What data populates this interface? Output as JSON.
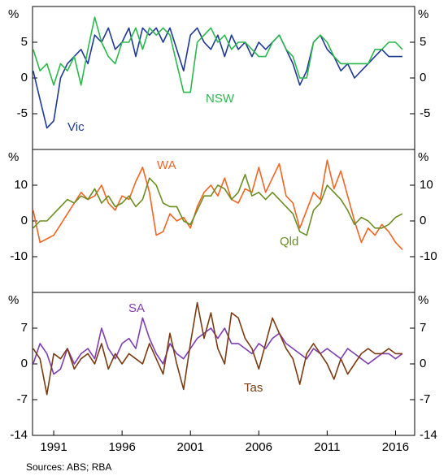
{
  "chart_data": [
    {
      "type": "line",
      "unit": "%",
      "x": [
        1989.5,
        1990,
        1990.5,
        1991,
        1991.5,
        1992,
        1992.5,
        1993,
        1993.5,
        1994,
        1994.5,
        1995,
        1995.5,
        1996,
        1996.5,
        1997,
        1997.5,
        1998,
        1998.5,
        1999,
        1999.5,
        2000,
        2000.5,
        2001,
        2001.5,
        2002,
        2002.5,
        2003,
        2003.5,
        2004,
        2004.5,
        2005,
        2005.5,
        2006,
        2006.5,
        2007,
        2007.5,
        2008,
        2008.5,
        2009,
        2009.5,
        2010,
        2010.5,
        2011,
        2011.5,
        2012,
        2012.5,
        2013,
        2013.5,
        2014,
        2014.5,
        2015,
        2015.5,
        2016,
        2016.5
      ],
      "xlim": [
        1989.45,
        2017.4
      ],
      "ylim": [
        -10,
        10
      ],
      "yticks": [
        -5,
        0,
        5
      ],
      "series": [
        {
          "name": "Vic",
          "color": "#1f3a93",
          "values": [
            1,
            -3,
            -7,
            -6,
            0,
            2,
            3,
            4,
            2,
            6,
            5,
            7,
            4,
            5,
            7,
            3,
            7,
            6,
            7,
            5,
            7,
            4,
            1,
            6,
            7,
            5,
            4,
            6,
            3,
            6,
            4,
            5,
            3,
            5,
            4,
            5,
            6,
            4,
            2,
            -1,
            1,
            5,
            6,
            4,
            3,
            1,
            2,
            0,
            1,
            2,
            3,
            4,
            3,
            3,
            3
          ]
        },
        {
          "name": "NSW",
          "color": "#2db84d",
          "values": [
            4,
            1,
            2,
            -1,
            2,
            1,
            3,
            -1,
            4,
            8.5,
            5,
            3,
            2,
            5,
            5,
            7,
            4,
            7,
            6,
            7,
            6,
            2,
            -2,
            -2,
            5,
            6,
            7,
            5,
            6,
            4,
            5,
            5,
            4,
            3,
            3,
            5,
            6,
            4,
            3,
            0,
            0,
            5,
            6,
            5,
            3,
            2,
            2,
            2,
            2,
            2,
            4,
            4,
            5,
            5,
            4
          ]
        }
      ]
    },
    {
      "type": "line",
      "unit": "%",
      "x": [
        1989.5,
        1990,
        1990.5,
        1991,
        1991.5,
        1992,
        1992.5,
        1993,
        1993.5,
        1994,
        1994.5,
        1995,
        1995.5,
        1996,
        1996.5,
        1997,
        1997.5,
        1998,
        1998.5,
        1999,
        1999.5,
        2000,
        2000.5,
        2001,
        2001.5,
        2002,
        2002.5,
        2003,
        2003.5,
        2004,
        2004.5,
        2005,
        2005.5,
        2006,
        2006.5,
        2007,
        2007.5,
        2008,
        2008.5,
        2009,
        2009.5,
        2010,
        2010.5,
        2011,
        2011.5,
        2012,
        2012.5,
        2013,
        2013.5,
        2014,
        2014.5,
        2015,
        2015.5,
        2016,
        2016.5
      ],
      "xlim": [
        1989.45,
        2017.4
      ],
      "ylim": [
        -20,
        20
      ],
      "yticks": [
        -10,
        0,
        10
      ],
      "series": [
        {
          "name": "WA",
          "color": "#f26522",
          "values": [
            3,
            -6,
            -5,
            -4,
            -1,
            2,
            5,
            8,
            6,
            7,
            10,
            5,
            3,
            7,
            6,
            11,
            15,
            8,
            -4,
            -3,
            2,
            0,
            1,
            -2,
            4,
            8,
            10,
            7,
            12,
            6,
            5,
            9,
            8,
            15,
            8,
            12,
            16,
            7,
            5,
            -2,
            3,
            8,
            6,
            17,
            9,
            14,
            7,
            0,
            -6,
            -2,
            -4,
            -1,
            -3,
            -6,
            -8
          ]
        },
        {
          "name": "Qld",
          "color": "#6b8e23",
          "values": [
            -2,
            0,
            0,
            2,
            4,
            6,
            5,
            7,
            6,
            9,
            5,
            7,
            4,
            5,
            7,
            4,
            6,
            12,
            10,
            5,
            4,
            4,
            0,
            -1,
            3,
            7,
            7,
            10,
            9,
            6,
            8,
            13,
            7,
            8,
            6,
            8,
            6,
            4,
            2,
            -3,
            -4,
            3,
            5,
            10,
            8,
            6,
            3,
            -1,
            1,
            0,
            -2,
            -2,
            -1,
            1,
            2
          ]
        }
      ]
    },
    {
      "type": "line",
      "unit": "%",
      "x": [
        1989.5,
        1990,
        1990.5,
        1991,
        1991.5,
        1992,
        1992.5,
        1993,
        1993.5,
        1994,
        1994.5,
        1995,
        1995.5,
        1996,
        1996.5,
        1997,
        1997.5,
        1998,
        1998.5,
        1999,
        1999.5,
        2000,
        2000.5,
        2001,
        2001.5,
        2002,
        2002.5,
        2003,
        2003.5,
        2004,
        2004.5,
        2005,
        2005.5,
        2006,
        2006.5,
        2007,
        2007.5,
        2008,
        2008.5,
        2009,
        2009.5,
        2010,
        2010.5,
        2011,
        2011.5,
        2012,
        2012.5,
        2013,
        2013.5,
        2014,
        2014.5,
        2015,
        2015.5,
        2016,
        2016.5
      ],
      "xlim": [
        1989.45,
        2017.4
      ],
      "ylim": [
        -14,
        14
      ],
      "yticks": [
        -14,
        -7,
        0,
        7
      ],
      "xticks": [
        1991,
        1996,
        2001,
        2006,
        2011,
        2016
      ],
      "series": [
        {
          "name": "SA",
          "color": "#7e3fb0",
          "values": [
            0,
            4,
            2,
            -2,
            -1,
            3,
            0,
            2,
            3,
            1,
            7,
            3,
            1,
            4,
            5,
            3,
            9,
            5,
            2,
            0,
            4,
            2,
            1,
            3,
            5,
            6,
            7,
            5,
            7,
            4,
            4,
            3,
            2,
            4,
            3,
            5,
            6,
            4,
            3,
            2,
            1,
            3,
            2,
            3,
            2,
            1,
            3,
            2,
            1,
            0,
            1,
            2,
            2,
            1,
            2
          ]
        },
        {
          "name": "Tas",
          "color": "#7a3b12",
          "values": [
            3,
            1,
            -6,
            2,
            1,
            3,
            -1,
            1,
            2,
            0,
            4,
            -1,
            2,
            0,
            2,
            1,
            0,
            4,
            1,
            -2,
            6,
            0,
            -5,
            4,
            12,
            5,
            10,
            3,
            0,
            10,
            9,
            5,
            3,
            -1,
            4,
            9,
            6,
            3,
            1,
            -4,
            2,
            4,
            2,
            0,
            -3,
            1,
            -2,
            0,
            2,
            3,
            2,
            2,
            3,
            2,
            2
          ]
        }
      ]
    }
  ],
  "note": "Sources: ABS; RBA"
}
